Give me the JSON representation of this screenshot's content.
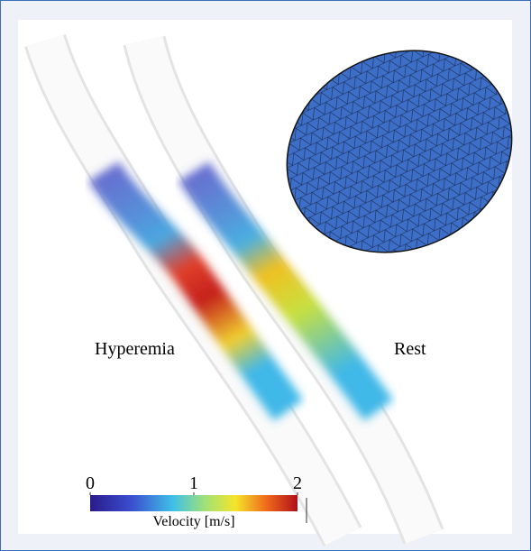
{
  "labels": {
    "left": "Hyperemia",
    "right": "Rest"
  },
  "colorbar": {
    "label": "Velocity [m/s]",
    "lim": [
      0,
      2
    ],
    "ticks": [
      0,
      1,
      2
    ]
  }
}
